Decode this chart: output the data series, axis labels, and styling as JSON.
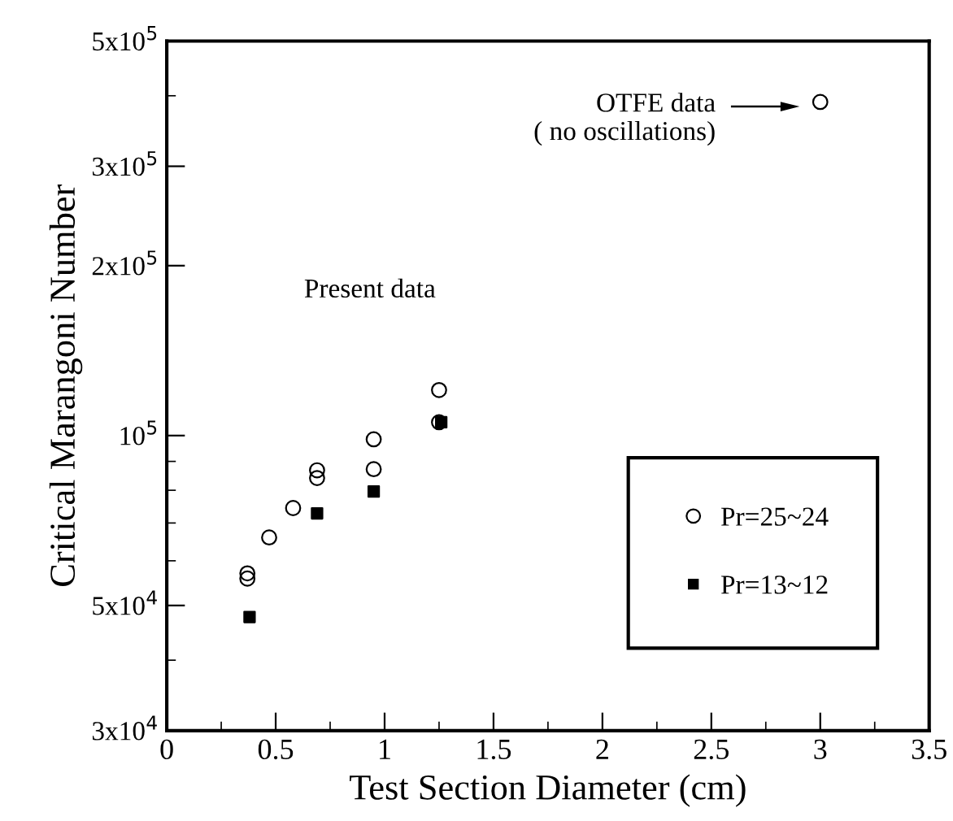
{
  "chart_data": {
    "type": "scatter",
    "xlabel": "Test Section Diameter (cm)",
    "ylabel": "Critical Marangoni Number",
    "log": "y",
    "xlim": [
      0,
      3.5
    ],
    "xticks": [
      0,
      0.5,
      1,
      1.5,
      2,
      2.5,
      3,
      3.5
    ],
    "ylim": [
      30000,
      500000
    ],
    "yticks": [
      {
        "value": 30000,
        "label": "3x10$^{4}$"
      },
      {
        "value": 50000,
        "label": "5x10$^{4}$"
      },
      {
        "value": 100000,
        "label": "10$^{5}$"
      },
      {
        "value": 200000,
        "label": "2x10$^{5}$"
      },
      {
        "value": 300000,
        "label": "3x10$^{5}$"
      },
      {
        "value": 500000,
        "label": "5x10$^{5}$"
      }
    ],
    "grid": false,
    "legend": "bottom right",
    "series": [
      {
        "name": "Pr=25~24",
        "color": "#000000",
        "marker": "circle",
        "x": [
          0.37,
          0.37,
          0.47,
          0.58,
          0.69,
          0.69,
          0.95,
          0.95,
          1.25,
          1.25
        ],
        "values": [
          57000,
          55800,
          66000,
          74400,
          86800,
          84100,
          98500,
          87200,
          120400,
          105600
        ]
      },
      {
        "name": "Pr=13~12",
        "color": "#000000",
        "marker": "square",
        "x": [
          0.38,
          0.69,
          0.95,
          1.26
        ],
        "values": [
          47700,
          72800,
          79600,
          105600
        ]
      },
      {
        "color": "#000000",
        "marker": "circle",
        "x": [
          3.0
        ],
        "values": [
          390000
        ]
      }
    ],
    "annotations": [
      "OTFE data\n( no oscillations)",
      "Present data"
    ]
  }
}
